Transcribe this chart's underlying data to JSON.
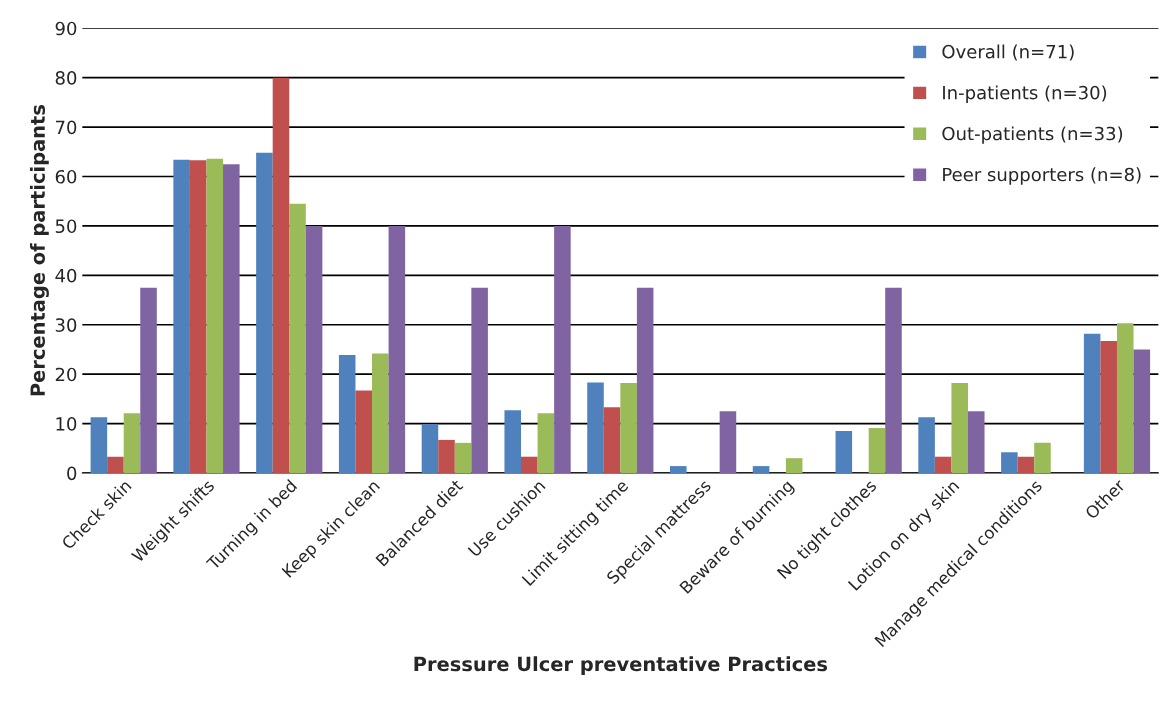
{
  "chart_data": {
    "type": "bar",
    "xlabel": "Pressure Ulcer preventative Practices",
    "ylabel": "Percentage of participants",
    "categories": [
      "Check skin",
      "Weight shifts",
      "Turning in bed",
      "Keep skin clean",
      "Balanced diet",
      "Use cushion",
      "Limit sitting time",
      "Special mattress",
      "Beware of burning",
      "No tight clothes",
      "Lotion on dry skin",
      "Manage medical conditions",
      "Other"
    ],
    "series": [
      {
        "name": "Overall (n=71)",
        "color": "#4f81bd",
        "values": [
          11.3,
          63.4,
          64.8,
          23.9,
          9.9,
          12.7,
          18.3,
          1.4,
          1.4,
          8.5,
          11.3,
          4.2,
          28.2
        ]
      },
      {
        "name": "In-patients (n=30)",
        "color": "#c0504d",
        "values": [
          3.3,
          63.3,
          80,
          16.7,
          6.7,
          3.3,
          13.3,
          0,
          0,
          0,
          3.3,
          3.3,
          26.7
        ]
      },
      {
        "name": "Out-patients (n=33)",
        "color": "#9bbb59",
        "values": [
          12.1,
          63.6,
          54.5,
          24.2,
          6.1,
          12.1,
          18.2,
          0,
          3.0,
          9.1,
          18.2,
          6.1,
          30.3
        ]
      },
      {
        "name": "Peer supporters (n=8)",
        "color": "#8064a2",
        "values": [
          37.5,
          62.5,
          50,
          50,
          37.5,
          50,
          37.5,
          12.5,
          0,
          37.5,
          12.5,
          0,
          25
        ]
      }
    ],
    "ylim": [
      0,
      90
    ],
    "yticks": [
      0,
      10,
      20,
      30,
      40,
      50,
      60,
      70,
      80,
      90
    ],
    "grid": "y",
    "legend": "top right"
  }
}
